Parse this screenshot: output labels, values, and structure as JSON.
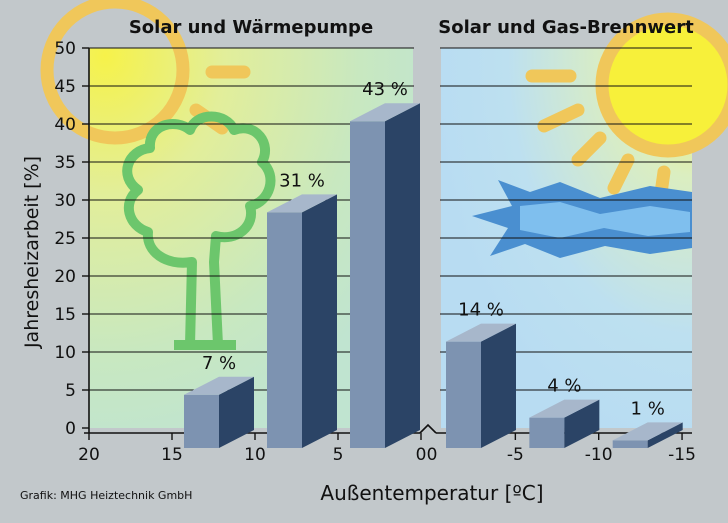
{
  "chart_data": [
    {
      "type": "bar",
      "title": "Solar und Wärmepumpe",
      "categories": [
        "15 bis 10",
        "10 bis 5",
        "5 bis 0"
      ],
      "values": [
        7,
        31,
        43
      ],
      "labels": [
        "7 %",
        "31 %",
        "43 %"
      ],
      "ylabel": "Jahresheizarbeit [%]",
      "xlabel": "Außentemperatur [ºC]",
      "ylim": [
        0,
        50
      ],
      "yticks": [
        "0",
        "5",
        "10",
        "15",
        "20",
        "25",
        "30",
        "35",
        "40",
        "45",
        "50"
      ],
      "xticks": [
        "20",
        "15",
        "10",
        "5",
        "0"
      ],
      "grid": true
    },
    {
      "type": "bar",
      "title": "Solar und Gas-Brennwert",
      "categories": [
        "0 bis -5",
        "-5 bis -10",
        "-10 bis -15"
      ],
      "values": [
        14,
        4,
        1
      ],
      "labels": [
        "14 %",
        "4 %",
        "1 %"
      ],
      "xticks": [
        "0",
        "-5",
        "-10",
        "-15"
      ],
      "ylim": [
        0,
        50
      ],
      "grid": true
    }
  ],
  "colors": {
    "bar_front": "#7d93b1",
    "bar_side": "#2b4466",
    "bar_top": "#a7b7cb",
    "tree": "#6cc66c",
    "sun": "#f2c95a",
    "gas_flame": "#4a8fd0"
  },
  "source": "Grafik: MHG Heiztechnik GmbH"
}
